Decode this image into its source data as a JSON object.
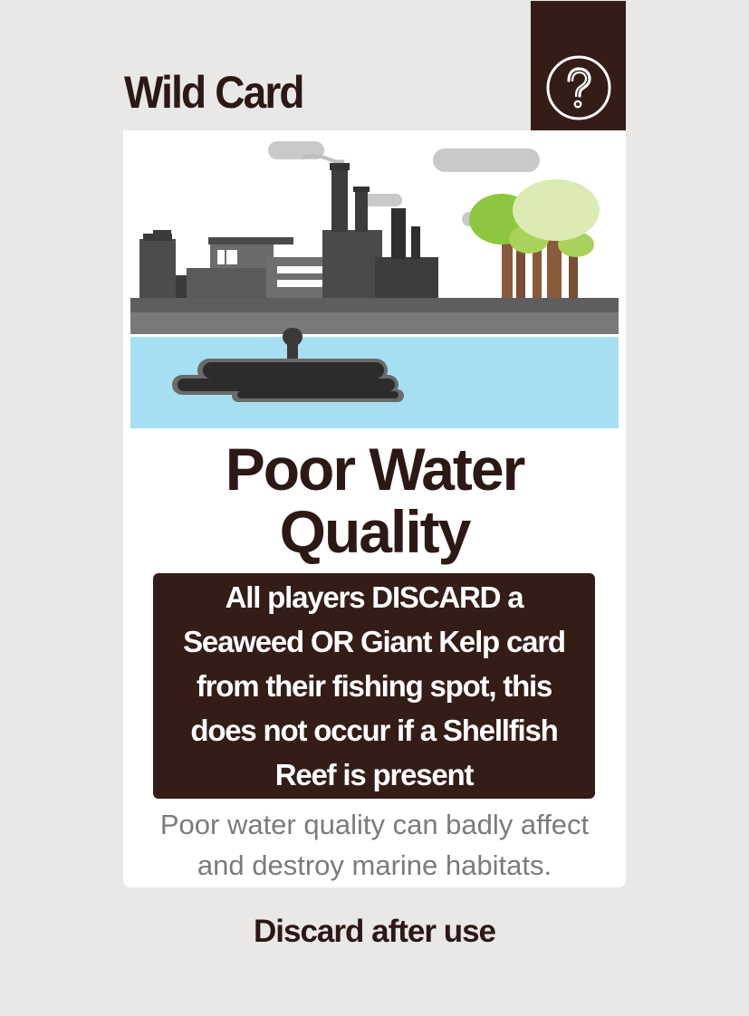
{
  "header": {
    "title": "Wild Card",
    "help_icon": "question-mark-icon"
  },
  "card": {
    "illustration": "factory-polluting-water-icon",
    "title_line1": "Poor Water",
    "title_line2": "Quality",
    "effect_lines": [
      "All players DISCARD a",
      "Seaweed OR Giant Kelp card",
      "from their fishing spot, this",
      "does not occur if a Shellfish",
      "Reef is present"
    ],
    "flavor_lines": [
      "Poor water quality can badly affect",
      "and destroy marine habitats."
    ]
  },
  "footer": {
    "text": "Discard after use"
  },
  "colors": {
    "background": "#e9e8e6",
    "dark_brown": "#341c17",
    "text_brown": "#2c1815",
    "water": "#a6dff2",
    "oil": "#2f2f2f",
    "tree_green": "#8dc63f",
    "tree_light": "#dcebb4",
    "trunk": "#8a5a3a"
  }
}
